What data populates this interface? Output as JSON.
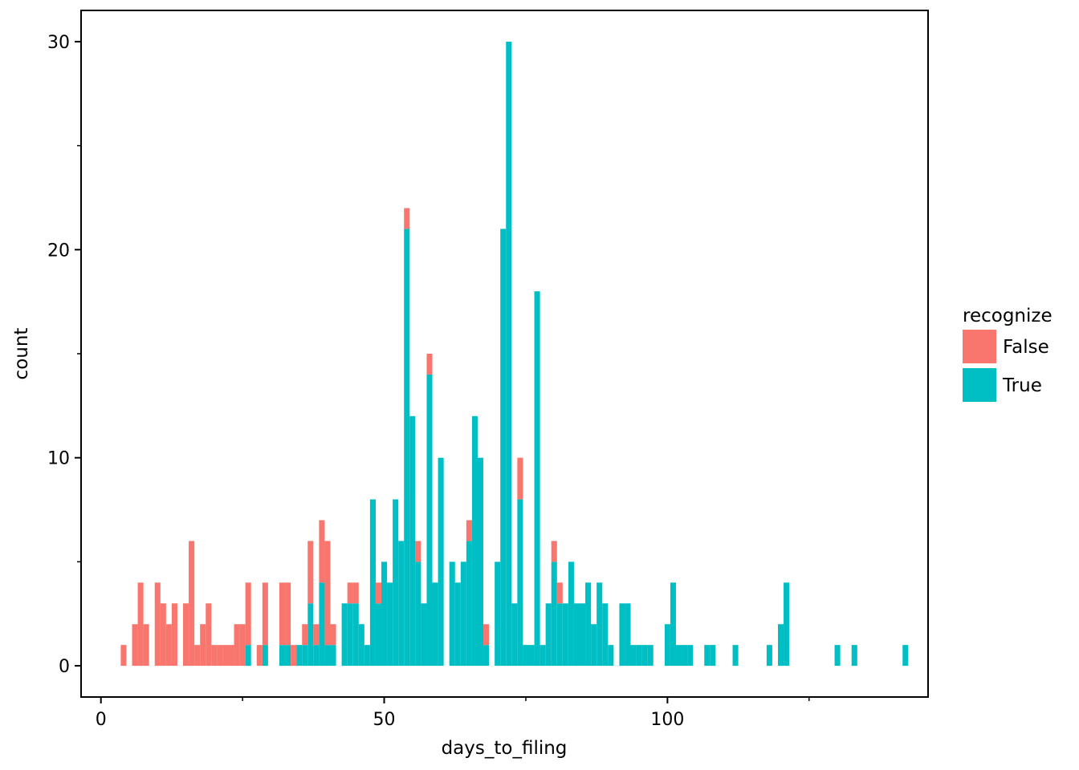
{
  "chart_data": {
    "type": "bar",
    "stacked": true,
    "title": "",
    "xlabel": "days_to_filing",
    "ylabel": "count",
    "xlim": [
      -3.5,
      146
    ],
    "ylim": [
      -1.5,
      31.5
    ],
    "xticks": [
      {
        "value": 0,
        "label": "0"
      },
      {
        "value": 50,
        "label": "50"
      },
      {
        "value": 100,
        "label": "100"
      }
    ],
    "xminor": [
      25,
      75,
      125
    ],
    "yticks": [
      {
        "value": 0,
        "label": "0"
      },
      {
        "value": 10,
        "label": "10"
      },
      {
        "value": 20,
        "label": "20"
      },
      {
        "value": 30,
        "label": "30"
      }
    ],
    "yminor": [
      5,
      15,
      25
    ],
    "bin_width": 1,
    "legend": {
      "title": "recognize",
      "position": "right",
      "entries": [
        {
          "label": "False",
          "color": "#F8766D"
        },
        {
          "label": "True",
          "color": "#00BFC4"
        }
      ]
    },
    "grid": false,
    "series": [
      {
        "name": "False",
        "color": "#F8766D",
        "x": [
          4,
          6,
          7,
          8,
          10,
          11,
          12,
          13,
          15,
          16,
          17,
          18,
          19,
          20,
          21,
          22,
          23,
          24,
          25,
          26,
          28,
          29,
          32,
          33,
          34,
          35,
          36,
          37,
          38,
          39,
          40,
          41,
          42,
          44,
          45,
          48,
          49,
          50,
          51,
          52,
          53,
          54,
          55,
          56,
          57,
          58,
          61,
          62,
          63,
          64,
          65,
          66,
          67,
          68,
          69,
          71,
          73,
          74,
          77,
          78,
          79,
          80,
          81,
          82,
          83
        ],
        "values": [
          1,
          2,
          4,
          2,
          4,
          3,
          2,
          3,
          3,
          6,
          1,
          2,
          3,
          1,
          1,
          1,
          1,
          2,
          2,
          3,
          1,
          3,
          3,
          3,
          1,
          0,
          1,
          3,
          1,
          3,
          5,
          1,
          0,
          1,
          1,
          0,
          1,
          0,
          0,
          0,
          0,
          1,
          0,
          1,
          0,
          1,
          0,
          0,
          0,
          0,
          1,
          0,
          0,
          1,
          0,
          0,
          0,
          2,
          0,
          0,
          0,
          1,
          1,
          0,
          0
        ]
      },
      {
        "name": "True",
        "color": "#00BFC4",
        "x": [
          26,
          29,
          32,
          33,
          35,
          36,
          37,
          38,
          39,
          40,
          41,
          43,
          44,
          45,
          46,
          47,
          48,
          49,
          50,
          51,
          52,
          53,
          54,
          55,
          56,
          57,
          58,
          59,
          60,
          62,
          63,
          64,
          65,
          66,
          67,
          68,
          70,
          71,
          72,
          73,
          74,
          75,
          76,
          77,
          78,
          79,
          80,
          81,
          82,
          83,
          84,
          85,
          86,
          87,
          88,
          89,
          90,
          92,
          93,
          94,
          95,
          96,
          97,
          100,
          101,
          102,
          103,
          104,
          107,
          108,
          112,
          118,
          120,
          121,
          130,
          133,
          142
        ],
        "values": [
          1,
          1,
          1,
          1,
          1,
          1,
          3,
          1,
          4,
          1,
          1,
          3,
          3,
          3,
          2,
          1,
          8,
          3,
          5,
          4,
          8,
          6,
          21,
          12,
          5,
          3,
          14,
          4,
          10,
          5,
          4,
          5,
          6,
          12,
          10,
          1,
          5,
          21,
          30,
          3,
          8,
          1,
          1,
          18,
          1,
          3,
          5,
          3,
          3,
          5,
          3,
          3,
          4,
          2,
          4,
          3,
          1,
          3,
          3,
          1,
          1,
          1,
          1,
          2,
          4,
          1,
          1,
          1,
          1,
          1,
          1,
          1,
          2,
          4,
          1,
          1,
          1
        ]
      }
    ]
  }
}
